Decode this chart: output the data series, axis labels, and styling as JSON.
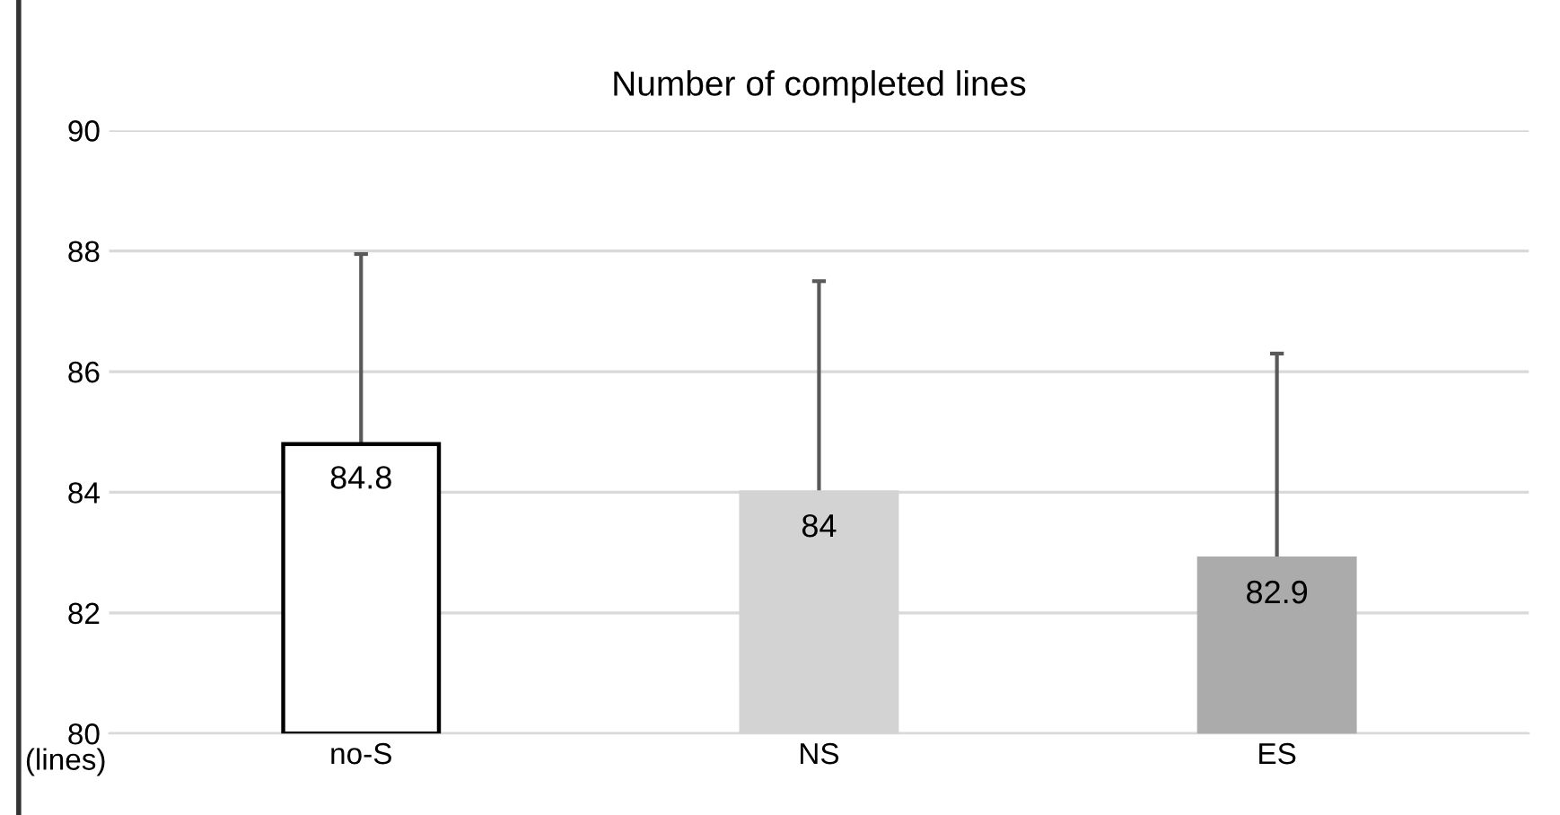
{
  "chart_data": {
    "type": "bar",
    "title": "Number of completed lines",
    "ylabel": "(lines)",
    "categories": [
      "no-S",
      "NS",
      "ES"
    ],
    "values": [
      84.8,
      84,
      82.9
    ],
    "colors": [
      "#ffffff",
      "#d3d3d3",
      "#ababab"
    ],
    "errors": [
      [
        84.8,
        87.95
      ],
      [
        84,
        87.5
      ],
      [
        82.9,
        86.3
      ]
    ],
    "data_labels": true,
    "ylim": [
      80,
      90
    ],
    "yticks": [
      80,
      82,
      84,
      86,
      88,
      90
    ],
    "grid": "y"
  }
}
